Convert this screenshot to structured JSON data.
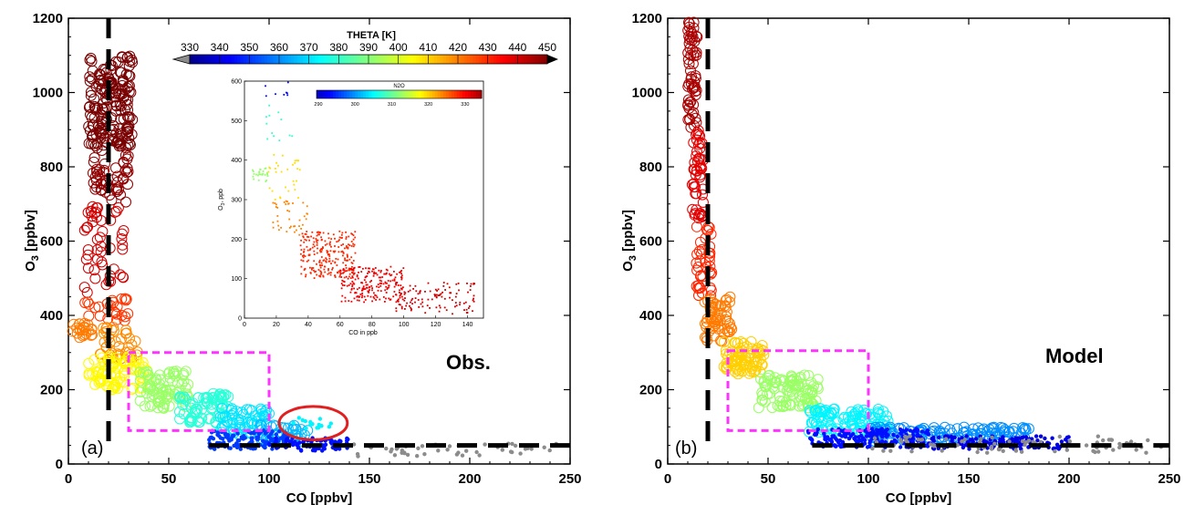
{
  "colors": {
    "ring_highlight": "#e02020",
    "box_dashed": "#ff33ff",
    "reference_lines": "#000000",
    "below_scale": "#8c8c8c"
  },
  "colorbar": {
    "title": "THETA [K]",
    "ticks": [
      "330",
      "340",
      "350",
      "360",
      "370",
      "380",
      "390",
      "400",
      "410",
      "420",
      "430",
      "440",
      "450"
    ]
  },
  "chart_data": [
    {
      "type": "scatter",
      "panel_label": "(a)",
      "annotation": "Obs.",
      "xlabel": "CO [ppbv]",
      "ylabel": "O3 [ppbv]",
      "xlim": [
        0,
        250
      ],
      "ylim": [
        0,
        1200
      ],
      "xticks": [
        "0",
        "50",
        "100",
        "150",
        "200",
        "250"
      ],
      "yticks": [
        "0",
        "200",
        "400",
        "600",
        "800",
        "1000",
        "1200"
      ],
      "color_variable": "THETA [K]",
      "reference_lines": {
        "vertical_co": 20,
        "horizontal_o3": 50,
        "horizontal_from_co": 70
      },
      "dashed_box": {
        "co": [
          30,
          100
        ],
        "o3": [
          90,
          300
        ]
      },
      "highlight_ellipse": {
        "co_center": 122,
        "o3_center": 110,
        "co_halfwidth": 17,
        "o3_halfheight": 45
      },
      "groups": [
        {
          "co": [
            10,
            32
          ],
          "o3": [
            850,
            1100
          ],
          "theta": 452,
          "style": "ring",
          "n": 180
        },
        {
          "co": [
            12,
            30
          ],
          "o3": [
            700,
            850
          ],
          "theta": 448,
          "style": "ring",
          "n": 50
        },
        {
          "co": [
            8,
            28
          ],
          "o3": [
            450,
            700
          ],
          "theta": 440,
          "style": "ring",
          "n": 50
        },
        {
          "co": [
            8,
            30
          ],
          "o3": [
            380,
            450
          ],
          "theta": 428,
          "style": "ring",
          "n": 25
        },
        {
          "co": [
            2,
            12
          ],
          "o3": [
            340,
            380
          ],
          "theta": 420,
          "style": "ring",
          "n": 22
        },
        {
          "co": [
            15,
            35
          ],
          "o3": [
            280,
            380
          ],
          "theta": 418,
          "style": "ring",
          "n": 40
        },
        {
          "co": [
            10,
            40
          ],
          "o3": [
            200,
            290
          ],
          "theta": 405,
          "style": "ring",
          "n": 80
        },
        {
          "co": [
            35,
            60
          ],
          "o3": [
            150,
            250
          ],
          "theta": 392,
          "style": "ring",
          "n": 80
        },
        {
          "co": [
            55,
            80
          ],
          "o3": [
            110,
            190
          ],
          "theta": 378,
          "style": "ring",
          "n": 70
        },
        {
          "co": [
            75,
            100
          ],
          "o3": [
            80,
            150
          ],
          "theta": 370,
          "style": "ring",
          "n": 60
        },
        {
          "co": [
            95,
            120
          ],
          "o3": [
            60,
            110
          ],
          "theta": 365,
          "style": "ring",
          "n": 40
        },
        {
          "co": [
            70,
            110
          ],
          "o3": [
            40,
            90
          ],
          "theta": 350,
          "style": "dot",
          "n": 150
        },
        {
          "co": [
            100,
            140
          ],
          "o3": [
            35,
            70
          ],
          "theta": 345,
          "style": "dot",
          "n": 80
        },
        {
          "co": [
            112,
            132
          ],
          "o3": [
            95,
            125
          ],
          "theta": 372,
          "style": "dot",
          "n": 15
        },
        {
          "co": [
            140,
            245
          ],
          "o3": [
            20,
            55
          ],
          "theta": 320,
          "style": "dot",
          "n": 50
        }
      ]
    },
    {
      "type": "scatter",
      "panel_label": "(b)",
      "annotation": "Model",
      "xlabel": "CO [ppbv]",
      "ylabel": "O3 [ppbv]",
      "xlim": [
        0,
        250
      ],
      "ylim": [
        0,
        1200
      ],
      "xticks": [
        "0",
        "50",
        "100",
        "150",
        "200",
        "250"
      ],
      "yticks": [
        "0",
        "200",
        "400",
        "600",
        "800",
        "1000",
        "1200"
      ],
      "color_variable": "THETA [K]",
      "reference_lines": {
        "vertical_co": 20,
        "horizontal_o3": 50,
        "horizontal_from_co": 72
      },
      "dashed_box": {
        "co": [
          30,
          100
        ],
        "o3": [
          90,
          305
        ]
      },
      "groups": [
        {
          "co": [
            10,
            15
          ],
          "o3": [
            900,
            1190
          ],
          "theta": 445,
          "style": "ring",
          "n": 60
        },
        {
          "co": [
            12,
            18
          ],
          "o3": [
            650,
            900
          ],
          "theta": 438,
          "style": "ring",
          "n": 50
        },
        {
          "co": [
            14,
            22
          ],
          "o3": [
            450,
            650
          ],
          "theta": 430,
          "style": "ring",
          "n": 40
        },
        {
          "co": [
            18,
            32
          ],
          "o3": [
            330,
            450
          ],
          "theta": 420,
          "style": "ring",
          "n": 60
        },
        {
          "co": [
            28,
            48
          ],
          "o3": [
            240,
            330
          ],
          "theta": 410,
          "style": "ring",
          "n": 80
        },
        {
          "co": [
            45,
            75
          ],
          "o3": [
            150,
            240
          ],
          "theta": 392,
          "style": "ring",
          "n": 100
        },
        {
          "co": [
            70,
            110
          ],
          "o3": [
            85,
            150
          ],
          "theta": 372,
          "style": "ring",
          "n": 100
        },
        {
          "co": [
            100,
            180
          ],
          "o3": [
            60,
            100
          ],
          "theta": 360,
          "style": "ring",
          "n": 120
        },
        {
          "co": [
            70,
            130
          ],
          "o3": [
            45,
            95
          ],
          "theta": 345,
          "style": "dot",
          "n": 200
        },
        {
          "co": [
            120,
            200
          ],
          "o3": [
            40,
            75
          ],
          "theta": 340,
          "style": "dot",
          "n": 150
        },
        {
          "co": [
            100,
            250
          ],
          "o3": [
            30,
            75
          ],
          "theta": 320,
          "style": "dot",
          "n": 90
        }
      ]
    },
    {
      "type": "scatter",
      "inset_of": "(a)",
      "xlabel": "CO in ppb",
      "ylabel": "O3, ppb",
      "xlim": [
        0,
        150
      ],
      "ylim": [
        0,
        600
      ],
      "xticks": [
        "0",
        "20",
        "40",
        "60",
        "80",
        "100",
        "120",
        "140"
      ],
      "yticks": [
        "0",
        "100",
        "200",
        "300",
        "400",
        "500",
        "600"
      ],
      "colorbar_title": "N2O",
      "colorbar_ticks": [
        "290",
        "300",
        "310",
        "320",
        "330"
      ],
      "color_variable": "N2O",
      "groups": [
        {
          "co": [
            12,
            28
          ],
          "o3": [
            560,
            605
          ],
          "n2o": 290,
          "n": 8
        },
        {
          "co": [
            12,
            30
          ],
          "o3": [
            440,
            540
          ],
          "n2o": 306,
          "n": 12
        },
        {
          "co": [
            5,
            15
          ],
          "o3": [
            345,
            380
          ],
          "n2o": 312,
          "n": 25
        },
        {
          "co": [
            15,
            35
          ],
          "o3": [
            300,
            420
          ],
          "n2o": 320,
          "n": 30
        },
        {
          "co": [
            18,
            40
          ],
          "o3": [
            210,
            300
          ],
          "n2o": 325,
          "n": 40
        },
        {
          "co": [
            35,
            70
          ],
          "o3": [
            100,
            220
          ],
          "n2o": 330,
          "n": 250
        },
        {
          "co": [
            60,
            100
          ],
          "o3": [
            40,
            130
          ],
          "n2o": 333,
          "n": 220
        },
        {
          "co": [
            95,
            145
          ],
          "o3": [
            10,
            90
          ],
          "n2o": 335,
          "n": 120
        }
      ]
    }
  ]
}
